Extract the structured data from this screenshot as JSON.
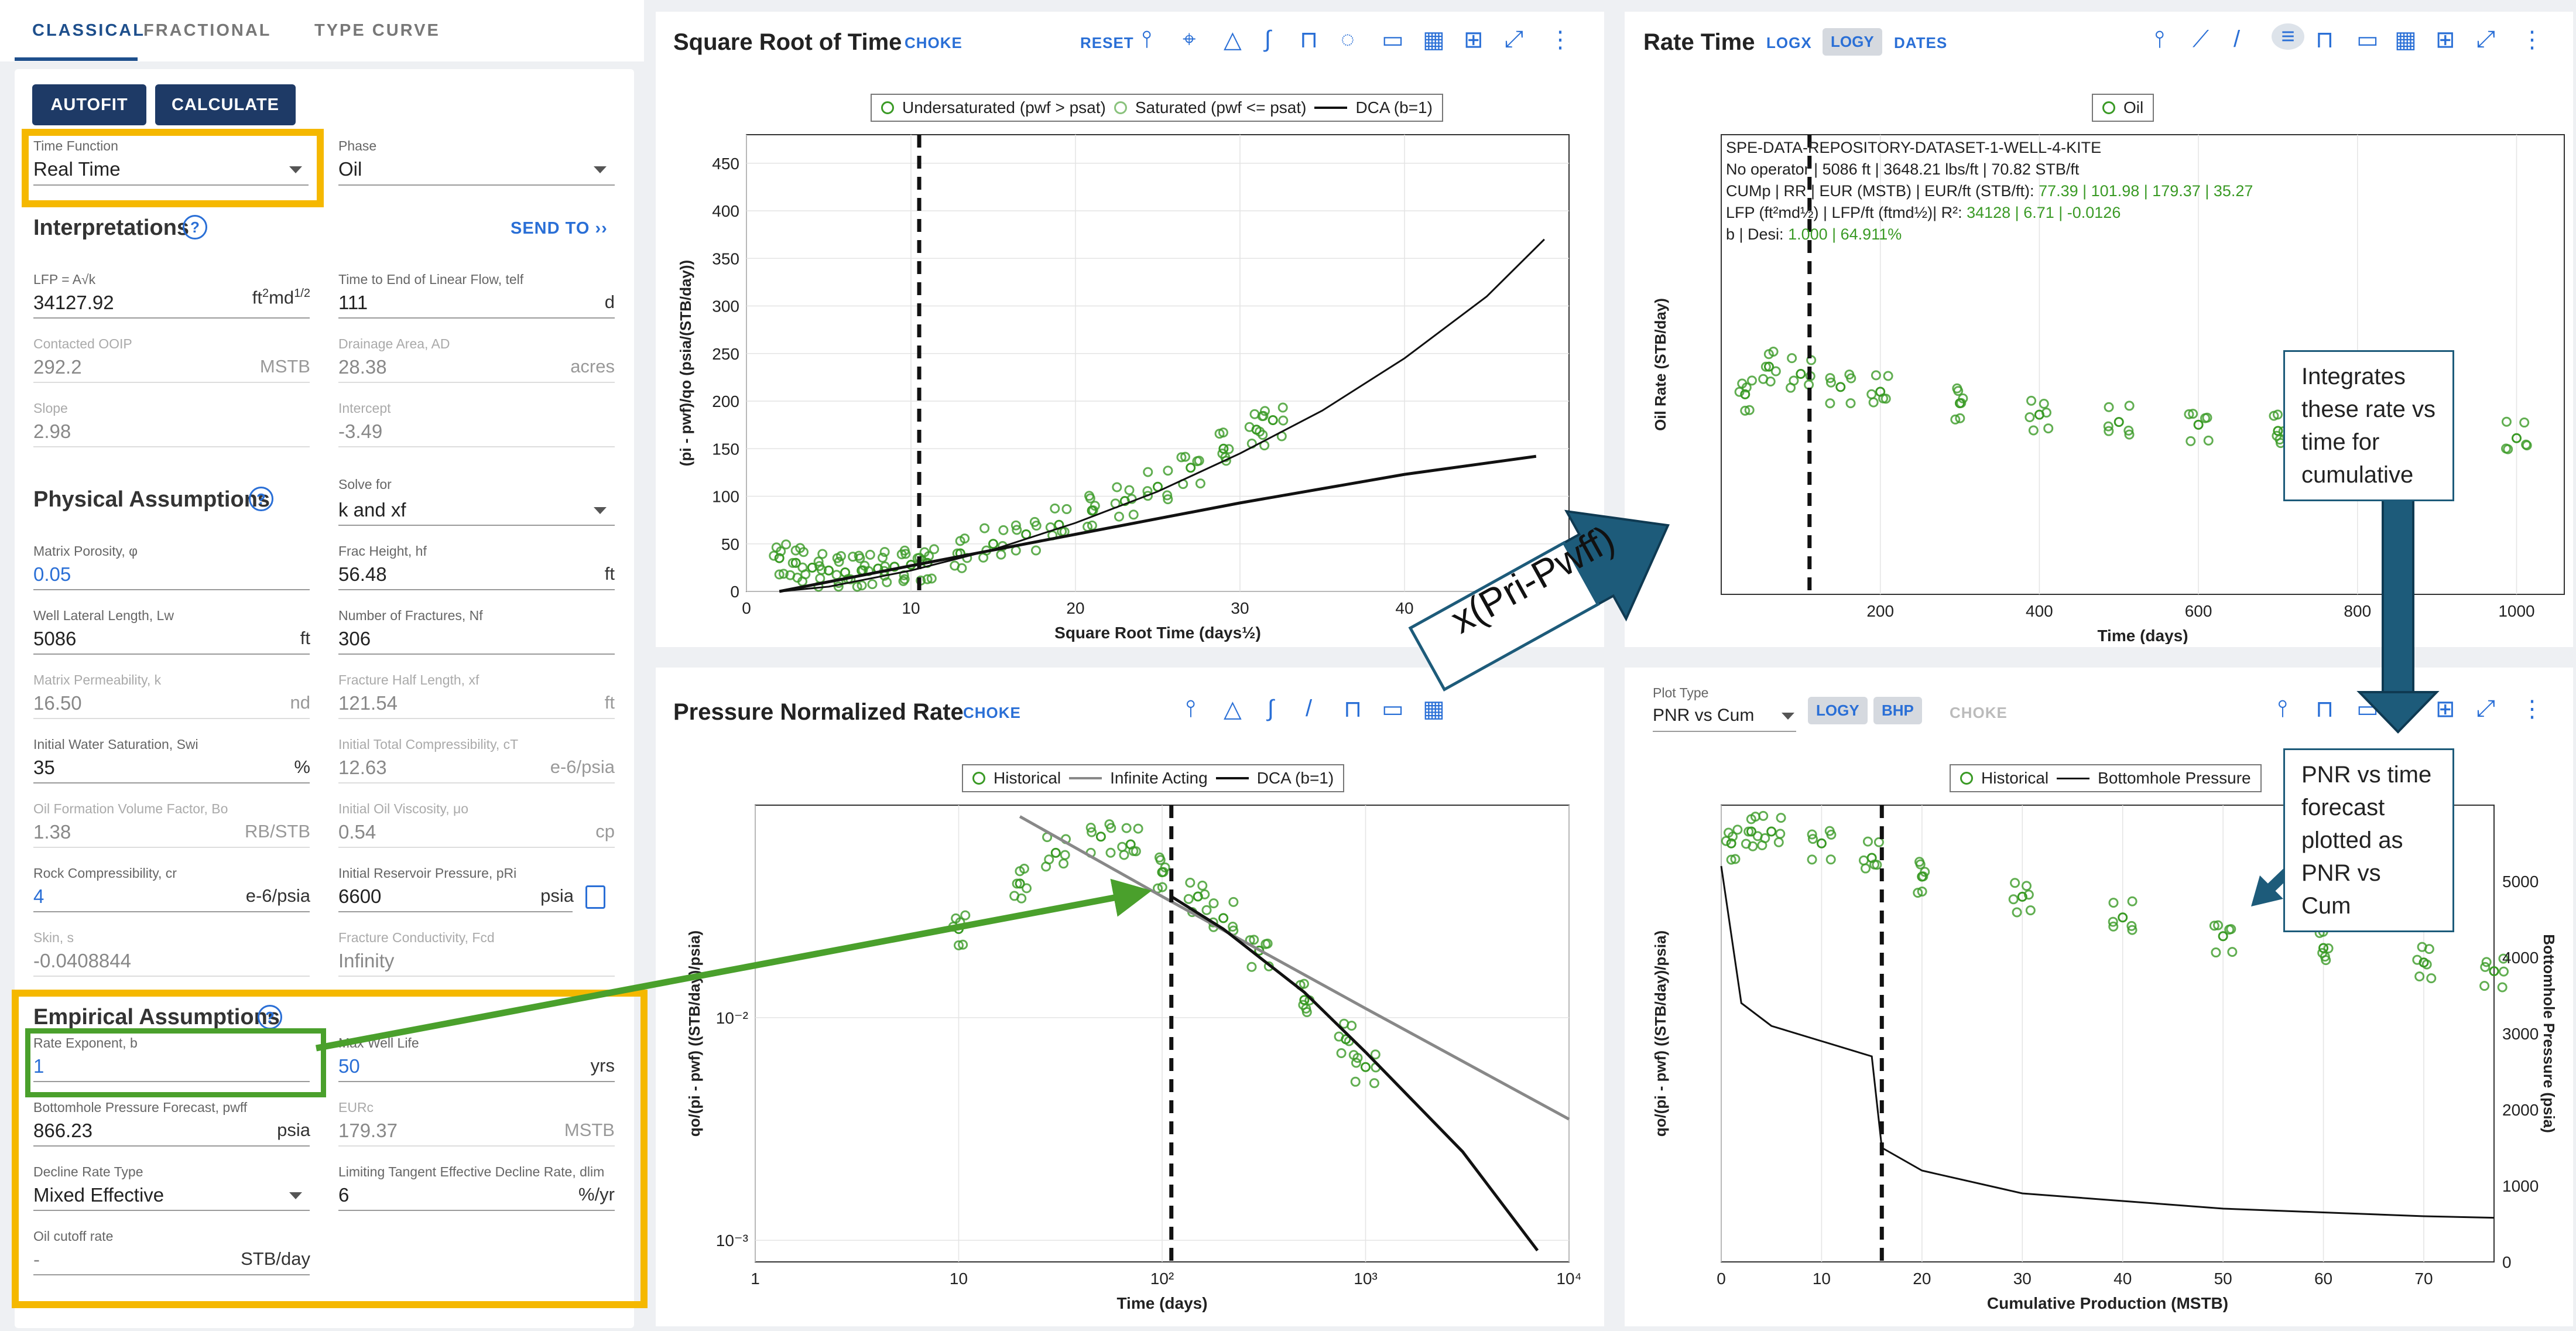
{
  "tabs": [
    "CLASSICAL",
    "FRACTIONAL",
    "TYPE CURVE"
  ],
  "buttons": {
    "autofit": "AUTOFIT",
    "calculate": "CALCULATE"
  },
  "time_function": {
    "label": "Time Function",
    "value": "Real Time"
  },
  "phase": {
    "label": "Phase",
    "value": "Oil"
  },
  "interpretations": {
    "title": "Interpretations",
    "send_to": "SEND TO"
  },
  "lfp": {
    "label": "LFP = A√k",
    "value": "34127.92",
    "unit": "ft²md½"
  },
  "telf": {
    "label": "Time to End of Linear Flow, telf",
    "value": "111",
    "unit": "d"
  },
  "ooip": {
    "label": "Contacted OOIP",
    "value": "292.2",
    "unit": "MSTB"
  },
  "drainage": {
    "label": "Drainage Area, AD",
    "value": "28.38",
    "unit": "acres"
  },
  "slope": {
    "label": "Slope",
    "value": "2.98"
  },
  "intercept": {
    "label": "Intercept",
    "value": "-3.49"
  },
  "physical": {
    "title": "Physical Assumptions"
  },
  "solve_for": {
    "label": "Solve for",
    "value": "k and xf"
  },
  "porosity": {
    "label": "Matrix Porosity, φ",
    "value": "0.05"
  },
  "frac_height": {
    "label": "Frac Height, hf",
    "value": "56.48",
    "unit": "ft"
  },
  "lateral": {
    "label": "Well Lateral Length, Lw",
    "value": "5086",
    "unit": "ft"
  },
  "num_frac": {
    "label": "Number of Fractures, Nf",
    "value": "306"
  },
  "perm": {
    "label": "Matrix Permeability, k",
    "value": "16.50",
    "unit": "nd"
  },
  "half_length": {
    "label": "Fracture Half Length, xf",
    "value": "121.54",
    "unit": "ft"
  },
  "sw": {
    "label": "Initial Water Saturation, Swi",
    "value": "35",
    "unit": "%"
  },
  "ct": {
    "label": "Initial Total Compressibility, cT",
    "value": "12.63",
    "unit": "e-6/psia"
  },
  "bo": {
    "label": "Oil Formation Volume Factor, Bo",
    "value": "1.38",
    "unit": "RB/STB"
  },
  "mu": {
    "label": "Initial Oil Viscosity, μo",
    "value": "0.54",
    "unit": "cp"
  },
  "cr": {
    "label": "Rock Compressibility, cr",
    "value": "4",
    "unit": "e-6/psia"
  },
  "pri": {
    "label": "Initial Reservoir Pressure, pRi",
    "value": "6600",
    "unit": "psia"
  },
  "skin": {
    "label": "Skin, s",
    "value": "-0.0408844"
  },
  "fcd": {
    "label": "Fracture Conductivity, Fcd",
    "value": "Infinity"
  },
  "empirical": {
    "title": "Empirical Assumptions"
  },
  "b": {
    "label": "Rate Exponent, b",
    "value": "1"
  },
  "well_life": {
    "label": "Max Well Life",
    "value": "50",
    "unit": "yrs"
  },
  "pwff": {
    "label": "Bottomhole Pressure Forecast, pwff",
    "value": "866.23",
    "unit": "psia"
  },
  "eur": {
    "label": "EURc",
    "value": "179.37",
    "unit": "MSTB"
  },
  "decline_type": {
    "label": "Decline Rate Type",
    "value": "Mixed Effective"
  },
  "dlim": {
    "label": "Limiting Tangent Effective Decline Rate, dlim",
    "value": "6",
    "unit": "%/yr"
  },
  "cutoff": {
    "label": "Oil cutoff rate",
    "value": "-",
    "unit": "STB/day"
  },
  "sqrt_panel": {
    "title": "Square Root of Time",
    "choke": "CHOKE",
    "reset": "RESET",
    "legend": [
      "Undersaturated (pwf > psat)",
      "Saturated (pwf <= psat)",
      "DCA (b=1)"
    ],
    "xlabel": "Square Root Time (days½)",
    "ylabel": "(pi - pwf)/qo (psia/(STB/day))"
  },
  "rate_panel": {
    "title": "Rate Time",
    "logx": "LOGX",
    "logy": "LOGY",
    "dates": "DATES",
    "legend": [
      "Oil"
    ],
    "xlabel": "Time (days)",
    "ylabel": "Oil Rate (STB/day)",
    "info": [
      "SPE-DATA-REPOSITORY-DATASET-1-WELL-4-KITE",
      "No operator | 5086 ft | 3648.21 lbs/ft | 70.82 STB/ft",
      "CUMp | RR | EUR (MSTB) | EUR/ft (STB/ft): ",
      "77.39 | 101.98 | 179.37 | 35.27",
      "LFP (ft²md½) | LFP/ft (ftmd½)| R²: ",
      "34128 | 6.71  | -0.0126",
      "b | Desi: ",
      "1.000 | 64.911%"
    ]
  },
  "pnr_panel": {
    "title": "Pressure Normalized Rate",
    "choke": "CHOKE",
    "legend": [
      "Historical",
      "Infinite Acting",
      "DCA (b=1)"
    ],
    "xlabel": "Time (days)",
    "ylabel": "qo/(pi - pwf) ((STB/day)/psia)"
  },
  "cum_panel": {
    "plot_type_label": "Plot Type",
    "plot_type": "PNR vs Cum",
    "logy": "LOGY",
    "bhp": "BHP",
    "choke": "CHOKE",
    "legend": [
      "Historical",
      "Bottomhole Pressure"
    ],
    "xlabel": "Cumulative Production (MSTB)",
    "ylabel": "qo/(pi - pwf) ((STB/day)/psia)",
    "y2label": "Bottomhole Pressure (psia)"
  },
  "annotations": {
    "arrow_text": "x(Pri-Pwff)",
    "callout1": "Integrates these rate vs time for cumulative",
    "callout2": "PNR vs time forecast plotted as PNR vs Cum"
  },
  "colors": {
    "brand": "#1e3a66",
    "accent": "#2a6fd6",
    "data_green": "#3a9a25",
    "highlight_yellow": "#f5b800",
    "highlight_green": "#4aa02c",
    "arrow_blue": "#1d5b7a"
  },
  "chart_data": [
    {
      "type": "scatter",
      "title": "Square Root of Time",
      "xlabel": "Square Root Time (days½)",
      "ylabel": "(pi - pwf)/qo (psia/(STB/day))",
      "xlim": [
        0,
        50
      ],
      "ylim": [
        0,
        480
      ],
      "xticks": [
        "0",
        "10",
        "20",
        "30",
        "40"
      ],
      "yticks": [
        "0",
        "50",
        "100",
        "150",
        "200",
        "250",
        "300",
        "350",
        "400",
        "450"
      ],
      "series": [
        {
          "name": "Undersaturated (pwf > psat)",
          "x": [
            2,
            3,
            4,
            5,
            6,
            7,
            8,
            9,
            10
          ],
          "y": [
            35,
            30,
            25,
            22,
            20,
            22,
            24,
            26,
            28
          ]
        },
        {
          "name": "Saturated (pwf <= psat)",
          "x": [
            11,
            13,
            15,
            17,
            19,
            21,
            23,
            25,
            27,
            29,
            31,
            32
          ],
          "y": [
            30,
            40,
            50,
            60,
            70,
            85,
            95,
            110,
            130,
            150,
            170,
            180
          ]
        },
        {
          "name": "DCA (b=1)",
          "x": [
            2,
            5,
            10,
            15,
            20,
            25,
            30,
            35,
            40,
            45,
            48.5
          ],
          "y": [
            0,
            5,
            22,
            44,
            72,
            105,
            145,
            190,
            245,
            310,
            370
          ]
        },
        {
          "name": "",
          "x": [
            2,
            10,
            20,
            30,
            40,
            48
          ],
          "y": [
            0,
            27,
            60,
            93,
            123,
            142
          ]
        }
      ],
      "annotations": [
        {
          "type": "vline",
          "x": 10.5
        }
      ]
    },
    {
      "type": "scatter",
      "title": "Rate Time",
      "xlabel": "Time (days)",
      "ylabel": "Oil Rate (STB/day)",
      "yscale": "log",
      "xlim": [
        0,
        1060
      ],
      "ylim": [
        1,
        100000
      ],
      "xticks": [
        "200",
        "400",
        "600",
        "800",
        "1000"
      ],
      "series": [
        {
          "name": "Oil",
          "x": [
            30,
            60,
            100,
            150,
            200,
            300,
            400,
            500,
            600,
            700,
            800,
            900,
            1000
          ],
          "y": [
            150,
            300,
            250,
            180,
            160,
            120,
            90,
            75,
            70,
            60,
            50,
            55,
            50
          ]
        }
      ],
      "annotations": [
        {
          "type": "vline",
          "x": 111
        }
      ]
    },
    {
      "type": "scatter",
      "title": "Pressure Normalized Rate",
      "xlabel": "Time (days)",
      "ylabel": "qo/(pi - pwf) ((STB/day)/psia)",
      "xscale": "log",
      "yscale": "log",
      "xlim": [
        1,
        10000
      ],
      "ylim": [
        0.0008,
        0.09
      ],
      "xticks": [
        "1",
        "10",
        "10²",
        "10³",
        "10⁴"
      ],
      "yticks": [
        "10⁻³",
        "10⁻²"
      ],
      "series": [
        {
          "name": "Historical",
          "x": [
            10,
            20,
            30,
            50,
            70,
            100,
            150,
            200,
            300,
            500,
            800,
            1000
          ],
          "y": [
            0.025,
            0.04,
            0.055,
            0.065,
            0.06,
            0.045,
            0.035,
            0.028,
            0.02,
            0.012,
            0.008,
            0.006
          ]
        },
        {
          "name": "Infinite Acting",
          "x": [
            20,
            100,
            1000,
            10000
          ],
          "y": [
            0.08,
            0.035,
            0.011,
            0.0035
          ]
        },
        {
          "name": "DCA (b=1)",
          "x": [
            111,
            200,
            500,
            1000,
            3000,
            7000
          ],
          "y": [
            0.035,
            0.025,
            0.013,
            0.007,
            0.0025,
            0.0009
          ]
        }
      ],
      "annotations": [
        {
          "type": "vline",
          "x": 111
        }
      ]
    },
    {
      "type": "scatter",
      "title": "PNR vs Cum",
      "xlabel": "Cumulative Production (MSTB)",
      "ylabel": "qo/(pi - pwf) ((STB/day)/psia)",
      "y2label": "Bottomhole Pressure (psia)",
      "yscale": "log",
      "xlim": [
        0,
        77
      ],
      "ylim": [
        8e-05,
        0.09
      ],
      "y2lim": [
        0,
        6000
      ],
      "xticks": [
        "0",
        "10",
        "20",
        "30",
        "40",
        "50",
        "60",
        "70"
      ],
      "y2ticks": [
        "0",
        "1000",
        "2000",
        "3000",
        "4000",
        "5000"
      ],
      "series": [
        {
          "name": "Historical",
          "x": [
            1,
            3,
            5,
            10,
            15,
            20,
            30,
            40,
            50,
            60,
            70,
            77
          ],
          "y": [
            0.05,
            0.06,
            0.06,
            0.05,
            0.04,
            0.03,
            0.022,
            0.016,
            0.012,
            0.01,
            0.008,
            0.007
          ]
        },
        {
          "name": "Bottomhole Pressure",
          "x": [
            0,
            2,
            5,
            10,
            15,
            16,
            20,
            30,
            40,
            50,
            60,
            70,
            77
          ],
          "y": [
            5200,
            3400,
            3100,
            2900,
            2700,
            1500,
            1200,
            900,
            800,
            700,
            650,
            600,
            580
          ]
        }
      ],
      "annotations": [
        {
          "type": "vline",
          "x": 16
        }
      ]
    }
  ]
}
